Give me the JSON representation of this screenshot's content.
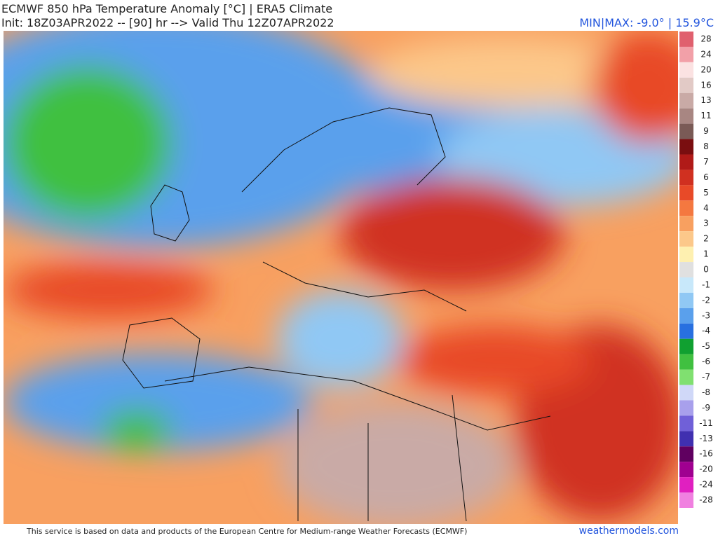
{
  "header": {
    "title": "ECMWF 850 hPa Temperature Anomaly [°C] | ERA5 Climate",
    "init": "Init: 18Z03APR2022 -- [90] hr --> Valid Thu 12Z07APR2022",
    "minmax": "MIN|MAX: -9.0° | 15.9°C"
  },
  "colorbar": {
    "levels": [
      {
        "value": 28,
        "color": "#e0606e"
      },
      {
        "value": 24,
        "color": "#f2a0a8"
      },
      {
        "value": 20,
        "color": "#fbe2e2"
      },
      {
        "value": 16,
        "color": "#e2cac6"
      },
      {
        "value": 13,
        "color": "#c9aaa6"
      },
      {
        "value": 11,
        "color": "#a88682"
      },
      {
        "value": 9,
        "color": "#7a5a56"
      },
      {
        "value": 8,
        "color": "#7a0e10"
      },
      {
        "value": 7,
        "color": "#b01a18"
      },
      {
        "value": 6,
        "color": "#d03020"
      },
      {
        "value": 5,
        "color": "#e84a28"
      },
      {
        "value": 4,
        "color": "#f47840"
      },
      {
        "value": 3,
        "color": "#f8a060"
      },
      {
        "value": 2,
        "color": "#fcc88a"
      },
      {
        "value": 1,
        "color": "#fef0b0"
      },
      {
        "value": 0,
        "color": "#e0e0e0"
      },
      {
        "value": -1,
        "color": "#c8e8fa"
      },
      {
        "value": -2,
        "color": "#90c8f4"
      },
      {
        "value": -3,
        "color": "#5aa0ec"
      },
      {
        "value": -4,
        "color": "#2870e0"
      },
      {
        "value": -5,
        "color": "#10a030"
      },
      {
        "value": -6,
        "color": "#40c040"
      },
      {
        "value": -7,
        "color": "#80e070"
      },
      {
        "value": -8,
        "color": "#d0d8f8"
      },
      {
        "value": -9,
        "color": "#a8a0ec"
      },
      {
        "value": -11,
        "color": "#7060d8"
      },
      {
        "value": -13,
        "color": "#4030b0"
      },
      {
        "value": -16,
        "color": "#600060"
      },
      {
        "value": -20,
        "color": "#a00090"
      },
      {
        "value": -24,
        "color": "#e020c0"
      },
      {
        "value": -28,
        "color": "#f080e0"
      }
    ]
  },
  "footer": {
    "credit": "This service is based on data and products of the European Centre for Medium-range Weather Forecasts (ECMWF)",
    "site": "weathermodels.com"
  }
}
